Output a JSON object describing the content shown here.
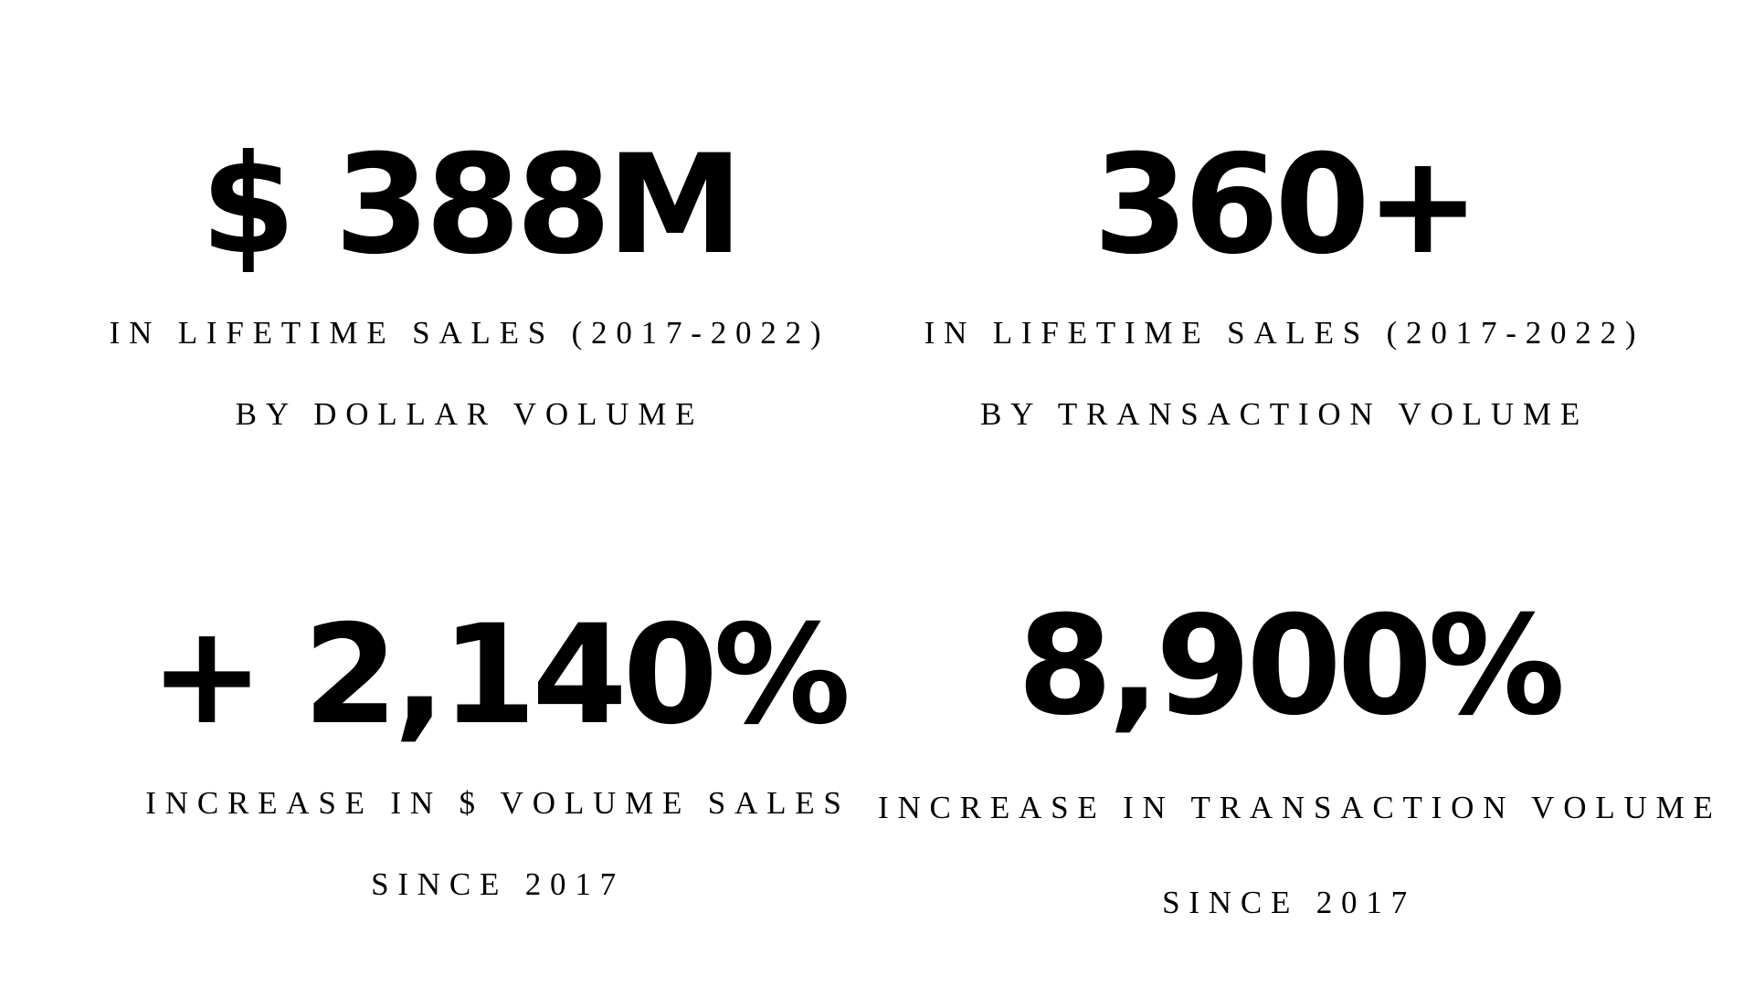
{
  "stats": [
    {
      "value": "$ 388M",
      "caption": [
        "IN LIFETIME SALES (2017-2022)",
        "BY DOLLAR VOLUME"
      ]
    },
    {
      "value": "360+",
      "caption": [
        "IN LIFETIME SALES (2017-2022)",
        "BY TRANSACTION VOLUME"
      ]
    },
    {
      "value": "+ 2,140%",
      "caption": [
        "INCREASE IN $ VOLUME SALES",
        "SINCE 2017"
      ]
    },
    {
      "value": "8,900%",
      "caption": [
        "INCREASE IN TRANSACTION VOLUME",
        "SINCE 2017"
      ]
    }
  ]
}
